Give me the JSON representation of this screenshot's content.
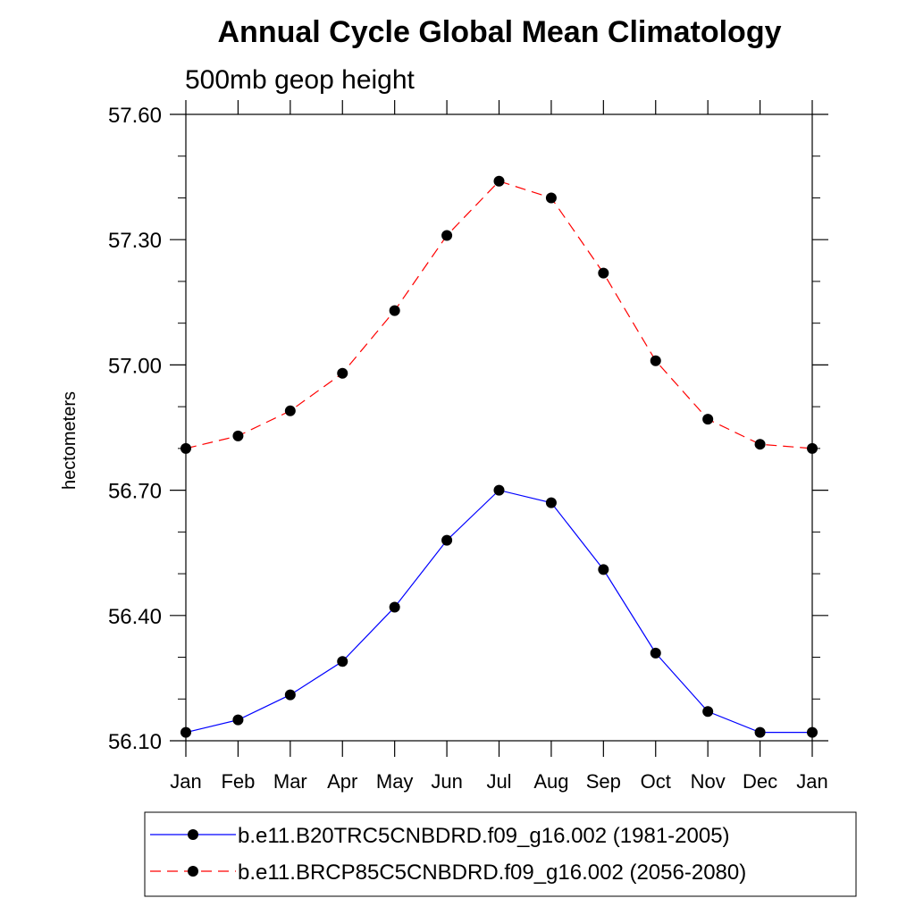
{
  "chart_data": {
    "type": "line",
    "title": "Annual Cycle Global Mean Climatology",
    "subtitle": "500mb geop height",
    "ylabel": "hectometers",
    "xlabel": "",
    "categories": [
      "Jan",
      "Feb",
      "Mar",
      "Apr",
      "May",
      "Jun",
      "Jul",
      "Aug",
      "Sep",
      "Oct",
      "Nov",
      "Dec",
      "Jan"
    ],
    "ylim": [
      56.1,
      57.6
    ],
    "yticks": [
      "56.10",
      "56.40",
      "56.70",
      "57.00",
      "57.30",
      "57.60"
    ],
    "ytick_values": [
      56.1,
      56.4,
      56.7,
      57.0,
      57.3,
      57.6
    ],
    "grid": false,
    "legend_position": "bottom",
    "series": [
      {
        "name": "b.e11.B20TRC5CNBDRD.f09_g16.002 (1981-2005)",
        "color": "#0000ff",
        "line_style": "solid",
        "marker": "filled-circle",
        "values": [
          56.12,
          56.15,
          56.21,
          56.29,
          56.42,
          56.58,
          56.7,
          56.67,
          56.51,
          56.31,
          56.17,
          56.12,
          56.12
        ]
      },
      {
        "name": "b.e11.BRCP85C5CNBDRD.f09_g16.002 (2056-2080)",
        "color": "#ff0000",
        "line_style": "dashed",
        "marker": "filled-circle",
        "values": [
          56.8,
          56.83,
          56.89,
          56.98,
          57.13,
          57.31,
          57.44,
          57.4,
          57.22,
          57.01,
          56.87,
          56.81,
          56.8
        ]
      }
    ]
  }
}
